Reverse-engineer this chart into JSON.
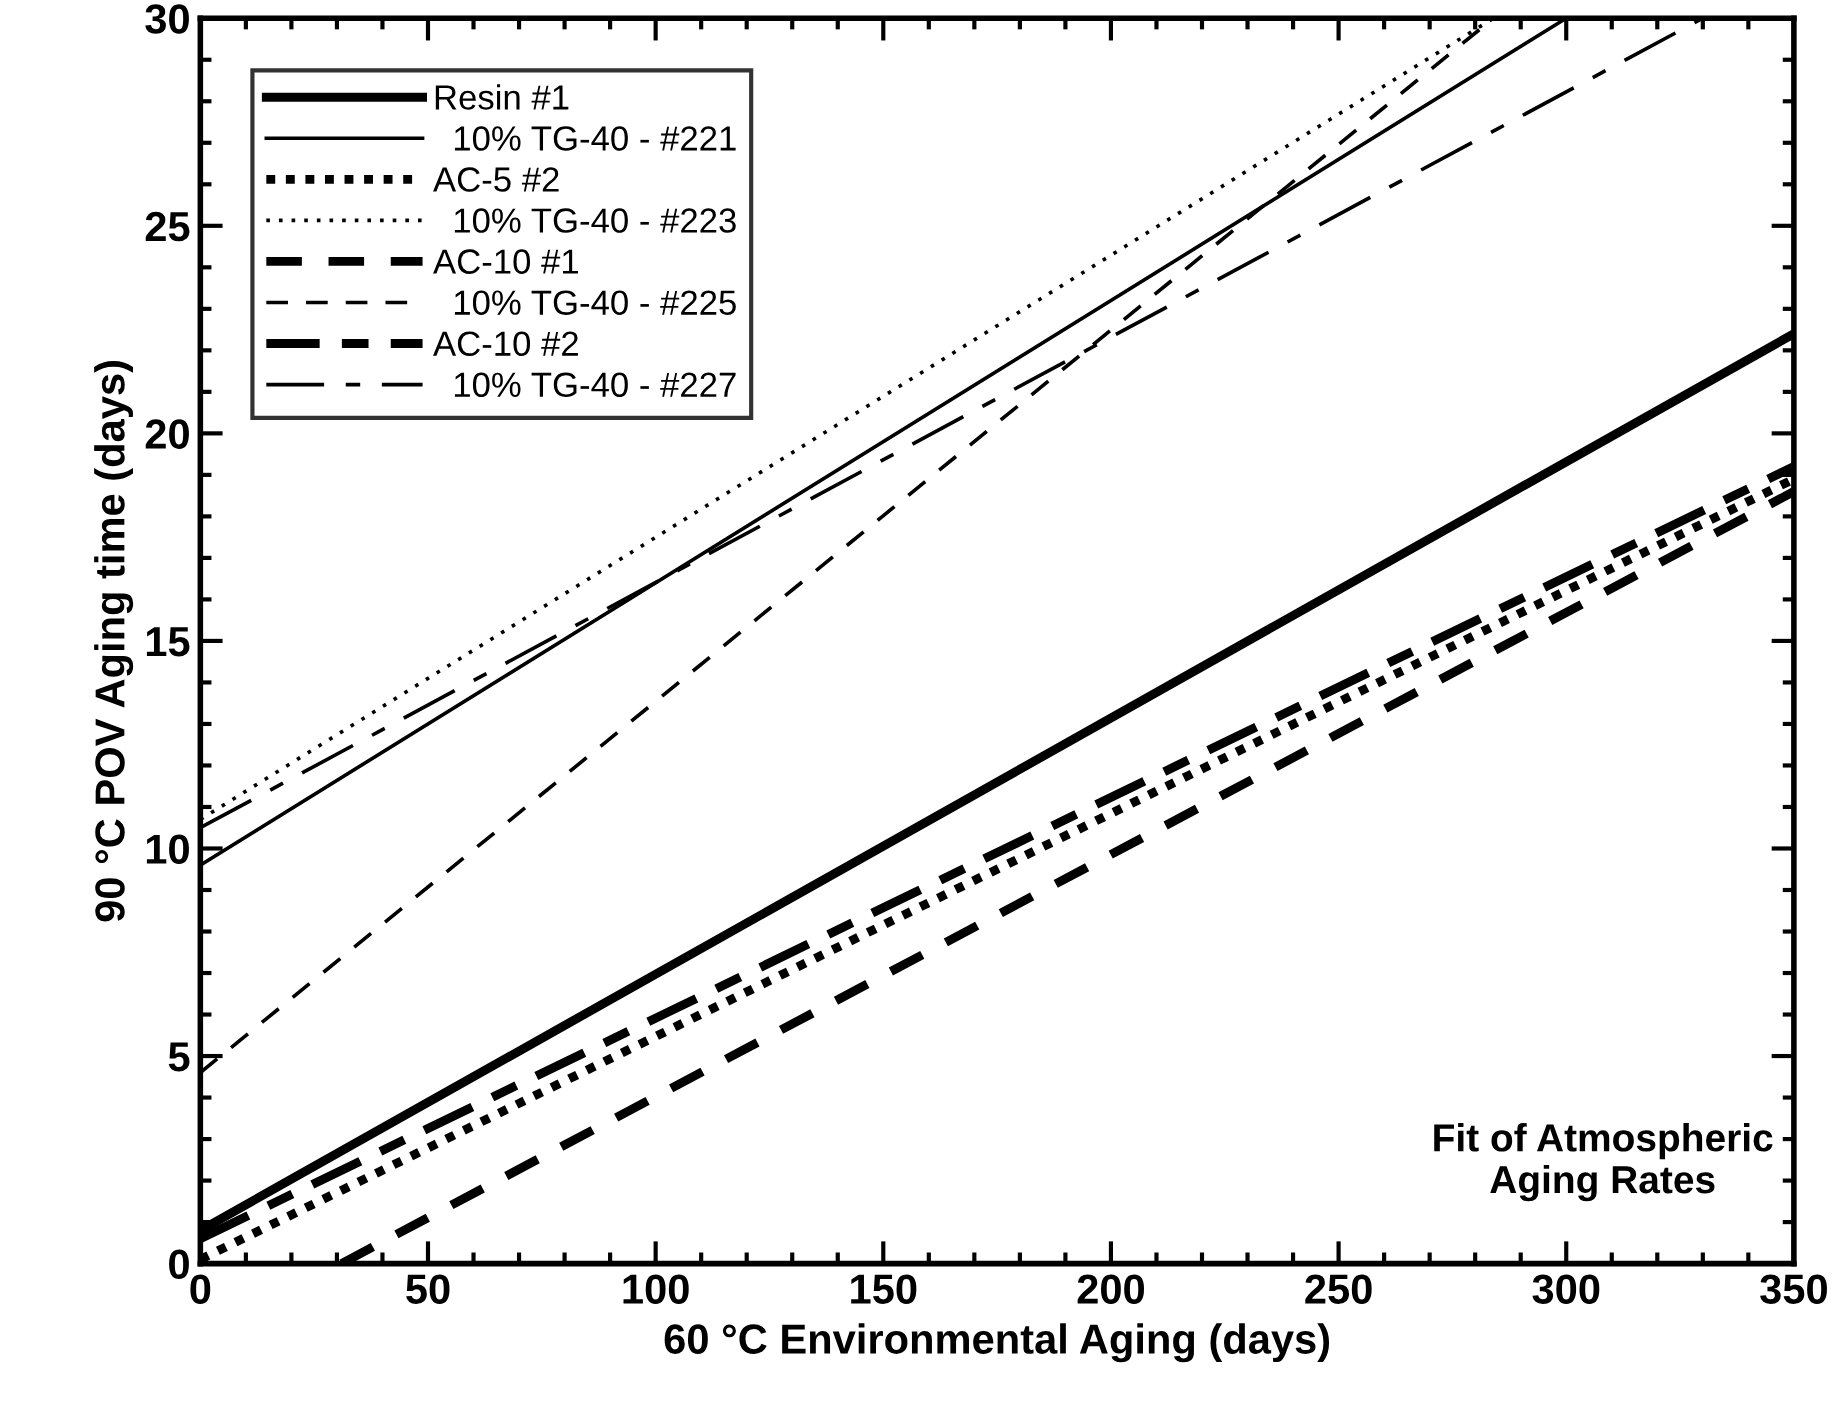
{
  "chart_data": {
    "type": "line",
    "xlabel": "60 °C Environmental Aging (days)",
    "ylabel": "90 °C POV Aging time (days)",
    "xlim": [
      0,
      350
    ],
    "ylim": [
      0,
      30
    ],
    "xticks": [
      0,
      50,
      100,
      150,
      200,
      250,
      300,
      350
    ],
    "yticks": [
      0,
      5,
      10,
      15,
      20,
      25,
      30
    ],
    "grid": false,
    "legend": "top left",
    "marker": "none",
    "annotations": [
      "Fit of Atmospheric\nAging Rates"
    ],
    "series": [
      {
        "name": "Resin #1",
        "color": "#000000",
        "line_style": "solid",
        "x": [
          0,
          350
        ],
        "values": [
          0.8,
          22.4
        ]
      },
      {
        "name": "  10% TG-40 - #221",
        "color": "#000000",
        "line_style": "solid",
        "x": [
          0,
          300
        ],
        "values": [
          9.6,
          30
        ]
      },
      {
        "name": "AC-5 #2",
        "color": "#000000",
        "line_style": "dotted",
        "x": [
          0,
          350
        ],
        "values": [
          0.1,
          18.9
        ]
      },
      {
        "name": "  10% TG-40 - #223",
        "color": "#000000",
        "line_style": "dotted",
        "x": [
          0,
          284
        ],
        "values": [
          10.7,
          30
        ]
      },
      {
        "name": "AC-10 #1",
        "color": "#000000",
        "line_style": "dashed",
        "x": [
          31,
          350
        ],
        "values": [
          0,
          18.6
        ]
      },
      {
        "name": "  10% TG-40 - #225",
        "color": "#000000",
        "line_style": "dashed",
        "x": [
          0,
          284
        ],
        "values": [
          4.6,
          30
        ]
      },
      {
        "name": "AC-10 #2",
        "color": "#000000",
        "line_style": "dashed",
        "x": [
          0,
          350
        ],
        "values": [
          0.6,
          19.2
        ]
      },
      {
        "name": "  10% TG-40 - #227",
        "color": "#000000",
        "line_style": "dashed",
        "x": [
          0,
          330
        ],
        "values": [
          10.5,
          30
        ]
      }
    ]
  }
}
